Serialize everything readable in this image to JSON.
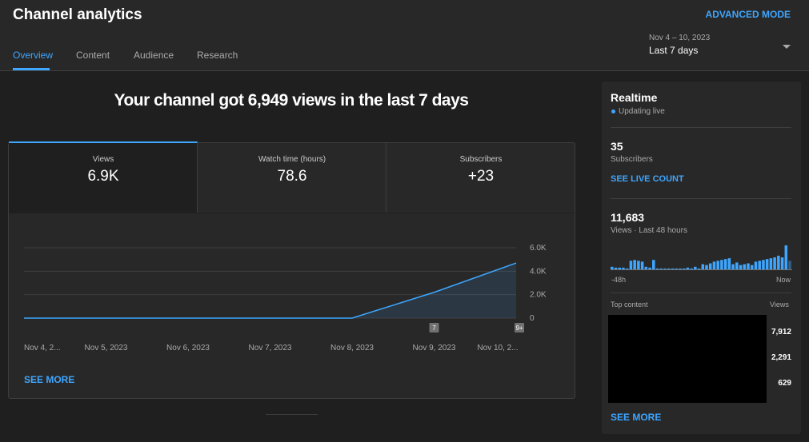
{
  "header": {
    "title": "Channel analytics",
    "advanced_mode": "ADVANCED MODE"
  },
  "tabs": [
    "Overview",
    "Content",
    "Audience",
    "Research"
  ],
  "date_range": {
    "range": "Nov 4 – 10, 2023",
    "label": "Last 7 days"
  },
  "headline": "Your channel got 6,949 views in the last 7 days",
  "metrics": [
    {
      "label": "Views",
      "value": "6.9K"
    },
    {
      "label": "Watch time (hours)",
      "value": "78.6"
    },
    {
      "label": "Subscribers",
      "value": "+23"
    }
  ],
  "chart": {
    "type": "line",
    "color": "#3ea6ff",
    "categories": [
      "Nov 4, 2...",
      "Nov 5, 2023",
      "Nov 6, 2023",
      "Nov 7, 2023",
      "Nov 8, 2023",
      "Nov 9, 2023",
      "Nov 10, 2..."
    ],
    "values": [
      0,
      0,
      0,
      0,
      0,
      2200,
      4700
    ],
    "ylim": [
      0,
      6000
    ],
    "yticks": [
      0,
      {
        "value": 2000,
        "label": "2.0K"
      },
      {
        "value": 4000,
        "label": "4.0K"
      },
      {
        "value": 6000,
        "label": "6.0K"
      }
    ],
    "grid": true,
    "markers": [
      {
        "category": "Nov 9, 2023",
        "label": "7"
      },
      {
        "category": "Nov 10, 2...",
        "label": "9+"
      }
    ],
    "see_more": "SEE MORE"
  },
  "realtime": {
    "title": "Realtime",
    "status": "Updating live",
    "subscribers": {
      "value": "35",
      "label": "Subscribers",
      "link": "SEE LIVE COUNT"
    },
    "views": {
      "value": "11,683",
      "label": "Views · Last 48 hours",
      "start": "-48h",
      "end": "Now",
      "color": "#3ea6ff",
      "values": [
        105,
        70,
        70,
        70,
        35,
        350,
        385,
        350,
        315,
        105,
        70,
        385,
        35,
        35,
        35,
        35,
        35,
        35,
        35,
        35,
        70,
        35,
        105,
        35,
        210,
        175,
        245,
        315,
        350,
        385,
        420,
        455,
        210,
        280,
        175,
        210,
        245,
        175,
        315,
        350,
        385,
        420,
        455,
        490,
        560,
        490,
        980,
        350
      ]
    },
    "top_content": {
      "title": "Top content",
      "column": "Views",
      "rows": [
        "7,912",
        "2,291",
        "629"
      ]
    },
    "see_more": "SEE MORE"
  }
}
